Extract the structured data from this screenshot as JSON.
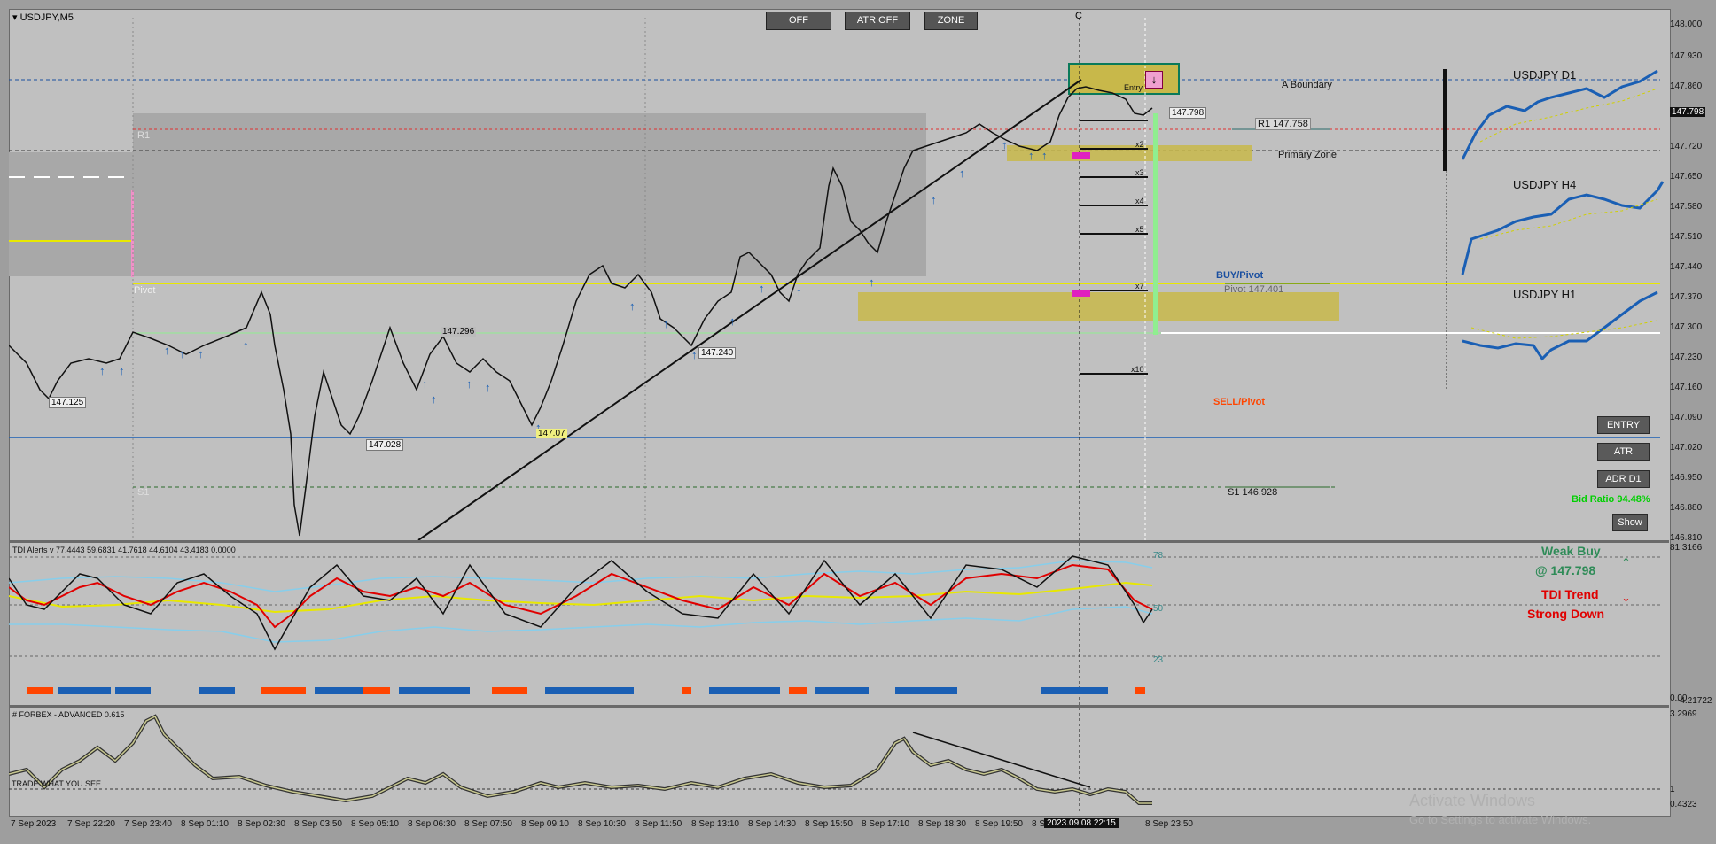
{
  "chart": {
    "symbol": "USDJPY,M5",
    "vertical_marker": "C",
    "top_buttons": [
      "OFF",
      "ATR OFF",
      "ZONE"
    ],
    "levels": {
      "boundary": "A Boundary",
      "r1_main": "R1",
      "r1": "R1 147.758",
      "primary_zone": "Primary Zone",
      "buy_pivot": "BUY/Pivot",
      "pivot_value": "Pivot 147.401",
      "pivot": "Pivot",
      "sell_pivot": "SELL/Pivot",
      "s1_main": "S1",
      "s1": "S1 146.928",
      "entry_tag": "Entry",
      "current_price_tag": "147.798"
    },
    "multipliers": [
      "x2",
      "x3",
      "x4",
      "x5",
      "x7",
      "x10"
    ],
    "price_tags": [
      "147.125",
      "147.028",
      "147.240",
      "147.296",
      "147.07"
    ],
    "price_axis": [
      "148.000",
      "147.930",
      "147.860",
      "147.798",
      "147.720",
      "147.650",
      "147.580",
      "147.510",
      "147.440",
      "147.370",
      "147.300",
      "147.230",
      "147.160",
      "147.090",
      "147.020",
      "146.950",
      "146.880",
      "146.810"
    ],
    "mini_charts": [
      "USDJPY D1",
      "USDJPY H4",
      "USDJPY H1"
    ],
    "side_buttons": [
      "ENTRY",
      "ATR",
      "ADR D1",
      "Show"
    ],
    "bid_ratio": "Bid Ratio 94.48%",
    "colors": {
      "buy": "#1a5fb4",
      "sell": "#ff4500",
      "zone": "#c8b84a",
      "pivot": "#e8e800",
      "signal_green": "#2e8b57",
      "signal_red": "#e00000"
    }
  },
  "tdi": {
    "label": "TDI Alerts v 77.4443 59.6831 41.7618 44.6104 43.4183 0.0000",
    "levels": [
      "78",
      "50",
      "23"
    ],
    "axis": [
      "81.3166",
      "0.00",
      "-4.21722"
    ],
    "signal_line1": "Weak Buy",
    "signal_line2": "@ 147.798",
    "trend_line1": "TDI Trend",
    "trend_line2": "Strong Down"
  },
  "forbex": {
    "label": "# FORBEX - ADVANCED 0.615",
    "sub_label": "TRADE WHAT YOU SEE",
    "axis": [
      "3.2969",
      "1",
      "0.4323"
    ]
  },
  "time_axis": [
    "7 Sep 2023",
    "7 Sep 22:20",
    "7 Sep 23:40",
    "8 Sep 01:10",
    "8 Sep 02:30",
    "8 Sep 03:50",
    "8 Sep 05:10",
    "8 Sep 06:30",
    "8 Sep 07:50",
    "8 Sep 09:10",
    "8 Sep 10:30",
    "8 Sep 11:50",
    "8 Sep 13:10",
    "8 Sep 14:30",
    "8 Sep 15:50",
    "8 Sep 17:10",
    "8 Sep 18:30",
    "8 Sep 19:50",
    "8 S",
    "8 Sep 23:50"
  ],
  "crosshair_time": "2023.09.08 22:15",
  "watermark": {
    "line1": "Activate Windows",
    "line2": "Go to Settings to activate Windows."
  }
}
